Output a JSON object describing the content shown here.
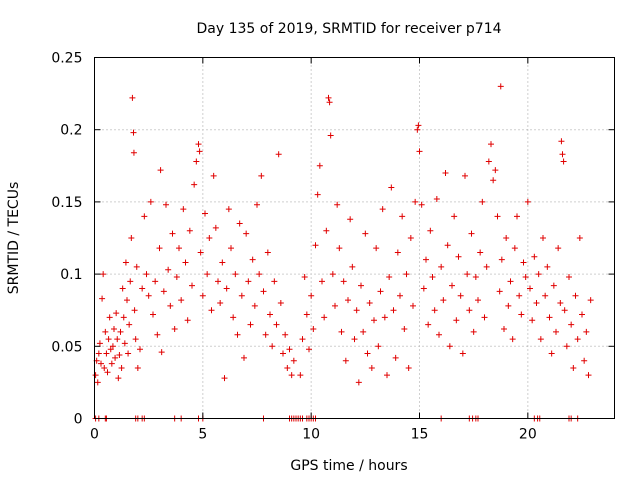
{
  "chart_data": {
    "type": "scatter",
    "title": "Day 135 of 2019, SRMTID for receiver p714",
    "xlabel": "GPS time / hours",
    "ylabel": "SRMTID / TECUs",
    "xlim": [
      0,
      24
    ],
    "ylim": [
      0,
      0.25
    ],
    "xticks": [
      0,
      5,
      10,
      15,
      20
    ],
    "xtick_labels": [
      "0",
      "5",
      "10",
      "15",
      "20"
    ],
    "yticks": [
      0,
      0.05,
      0.1,
      0.15,
      0.2,
      0.25
    ],
    "ytick_labels": [
      "0",
      "0.05",
      "0.1",
      "0.15",
      "0.2",
      "0.25"
    ],
    "grid": true,
    "marker": "+",
    "series_color": "#e00000",
    "series": [
      {
        "name": "SRMTID",
        "points": [
          [
            0.05,
            0.03
          ],
          [
            0.1,
            0.04
          ],
          [
            0.15,
            0.025
          ],
          [
            0.2,
            0.045
          ],
          [
            0.25,
            0.052
          ],
          [
            0.3,
            0.038
          ],
          [
            0.35,
            0.083
          ],
          [
            0.4,
            0.1
          ],
          [
            0.45,
            0.035
          ],
          [
            0.5,
            0.06
          ],
          [
            0.55,
            0.045
          ],
          [
            0.6,
            0.032
          ],
          [
            0.65,
            0.055
          ],
          [
            0.7,
            0.07
          ],
          [
            0.75,
            0.048
          ],
          [
            0.8,
            0.038
          ],
          [
            0.85,
            0.05
          ],
          [
            0.9,
            0.062
          ],
          [
            0.95,
            0.042
          ],
          [
            1.0,
            0.073
          ],
          [
            1.05,
            0.055
          ],
          [
            1.1,
            0.028
          ],
          [
            1.15,
            0.044
          ],
          [
            1.2,
            0.06
          ],
          [
            1.25,
            0.035
          ],
          [
            1.3,
            0.09
          ],
          [
            1.35,
            0.07
          ],
          [
            1.4,
            0.052
          ],
          [
            1.45,
            0.108
          ],
          [
            1.5,
            0.082
          ],
          [
            1.55,
            0.045
          ],
          [
            1.6,
            0.065
          ],
          [
            1.65,
            0.095
          ],
          [
            1.7,
            0.125
          ],
          [
            1.75,
            0.222
          ],
          [
            1.8,
            0.198
          ],
          [
            1.82,
            0.184
          ],
          [
            1.85,
            0.075
          ],
          [
            1.9,
            0.055
          ],
          [
            1.95,
            0.105
          ],
          [
            2.0,
            0.035
          ],
          [
            2.1,
            0.048
          ],
          [
            2.2,
            0.09
          ],
          [
            2.3,
            0.14
          ],
          [
            2.4,
            0.1
          ],
          [
            2.5,
            0.085
          ],
          [
            2.6,
            0.15
          ],
          [
            2.7,
            0.072
          ],
          [
            2.8,
            0.095
          ],
          [
            2.9,
            0.058
          ],
          [
            3.0,
            0.118
          ],
          [
            3.05,
            0.172
          ],
          [
            3.1,
            0.046
          ],
          [
            3.2,
            0.088
          ],
          [
            3.3,
            0.148
          ],
          [
            3.4,
            0.103
          ],
          [
            3.5,
            0.078
          ],
          [
            3.6,
            0.128
          ],
          [
            3.7,
            0.062
          ],
          [
            3.8,
            0.098
          ],
          [
            3.9,
            0.118
          ],
          [
            4.0,
            0.082
          ],
          [
            4.1,
            0.145
          ],
          [
            4.2,
            0.108
          ],
          [
            4.3,
            0.068
          ],
          [
            4.4,
            0.13
          ],
          [
            4.5,
            0.092
          ],
          [
            4.6,
            0.162
          ],
          [
            4.7,
            0.178
          ],
          [
            4.8,
            0.19
          ],
          [
            4.85,
            0.185
          ],
          [
            4.9,
            0.115
          ],
          [
            5.0,
            0.085
          ],
          [
            5.1,
            0.142
          ],
          [
            5.2,
            0.1
          ],
          [
            5.3,
            0.125
          ],
          [
            5.4,
            0.075
          ],
          [
            5.5,
            0.168
          ],
          [
            5.6,
            0.132
          ],
          [
            5.7,
            0.095
          ],
          [
            5.8,
            0.08
          ],
          [
            5.9,
            0.108
          ],
          [
            6.0,
            0.028
          ],
          [
            6.1,
            0.09
          ],
          [
            6.2,
            0.145
          ],
          [
            6.3,
            0.118
          ],
          [
            6.4,
            0.07
          ],
          [
            6.5,
            0.1
          ],
          [
            6.6,
            0.058
          ],
          [
            6.7,
            0.135
          ],
          [
            6.8,
            0.085
          ],
          [
            6.9,
            0.042
          ],
          [
            7.0,
            0.128
          ],
          [
            7.1,
            0.095
          ],
          [
            7.2,
            0.065
          ],
          [
            7.3,
            0.11
          ],
          [
            7.4,
            0.078
          ],
          [
            7.5,
            0.148
          ],
          [
            7.6,
            0.1
          ],
          [
            7.7,
            0.168
          ],
          [
            7.8,
            0.088
          ],
          [
            7.9,
            0.058
          ],
          [
            8.0,
            0.115
          ],
          [
            8.1,
            0.072
          ],
          [
            8.2,
            0.05
          ],
          [
            8.3,
            0.095
          ],
          [
            8.4,
            0.065
          ],
          [
            8.5,
            0.183
          ],
          [
            8.6,
            0.08
          ],
          [
            8.7,
            0.045
          ],
          [
            8.8,
            0.058
          ],
          [
            8.9,
            0.035
          ],
          [
            9.0,
            0.048
          ],
          [
            9.1,
            0.03
          ],
          [
            9.2,
            0.04
          ],
          [
            9.5,
            0.03
          ],
          [
            9.6,
            0.055
          ],
          [
            9.7,
            0.098
          ],
          [
            9.8,
            0.072
          ],
          [
            9.9,
            0.048
          ],
          [
            10.0,
            0.085
          ],
          [
            10.1,
            0.062
          ],
          [
            10.2,
            0.12
          ],
          [
            10.3,
            0.155
          ],
          [
            10.4,
            0.175
          ],
          [
            10.5,
            0.095
          ],
          [
            10.6,
            0.07
          ],
          [
            10.7,
            0.13
          ],
          [
            10.8,
            0.222
          ],
          [
            10.85,
            0.219
          ],
          [
            10.9,
            0.196
          ],
          [
            11.0,
            0.1
          ],
          [
            11.1,
            0.078
          ],
          [
            11.2,
            0.148
          ],
          [
            11.3,
            0.118
          ],
          [
            11.4,
            0.06
          ],
          [
            11.5,
            0.095
          ],
          [
            11.6,
            0.04
          ],
          [
            11.7,
            0.082
          ],
          [
            11.8,
            0.138
          ],
          [
            11.9,
            0.105
          ],
          [
            12.0,
            0.055
          ],
          [
            12.1,
            0.075
          ],
          [
            12.2,
            0.025
          ],
          [
            12.3,
            0.092
          ],
          [
            12.4,
            0.06
          ],
          [
            12.5,
            0.128
          ],
          [
            12.6,
            0.045
          ],
          [
            12.7,
            0.08
          ],
          [
            12.8,
            0.035
          ],
          [
            12.9,
            0.068
          ],
          [
            13.0,
            0.118
          ],
          [
            13.1,
            0.05
          ],
          [
            13.2,
            0.088
          ],
          [
            13.3,
            0.145
          ],
          [
            13.4,
            0.07
          ],
          [
            13.5,
            0.03
          ],
          [
            13.6,
            0.098
          ],
          [
            13.7,
            0.16
          ],
          [
            13.8,
            0.075
          ],
          [
            13.9,
            0.042
          ],
          [
            14.0,
            0.115
          ],
          [
            14.1,
            0.085
          ],
          [
            14.2,
            0.14
          ],
          [
            14.3,
            0.062
          ],
          [
            14.4,
            0.1
          ],
          [
            14.5,
            0.035
          ],
          [
            14.6,
            0.125
          ],
          [
            14.7,
            0.078
          ],
          [
            14.8,
            0.15
          ],
          [
            14.9,
            0.2
          ],
          [
            14.95,
            0.203
          ],
          [
            15.0,
            0.185
          ],
          [
            15.1,
            0.148
          ],
          [
            15.2,
            0.09
          ],
          [
            15.3,
            0.11
          ],
          [
            15.4,
            0.065
          ],
          [
            15.5,
            0.13
          ],
          [
            15.6,
            0.098
          ],
          [
            15.7,
            0.075
          ],
          [
            15.8,
            0.152
          ],
          [
            15.9,
            0.058
          ],
          [
            16.0,
            0.105
          ],
          [
            16.1,
            0.082
          ],
          [
            16.2,
            0.17
          ],
          [
            16.3,
            0.12
          ],
          [
            16.4,
            0.05
          ],
          [
            16.5,
            0.092
          ],
          [
            16.6,
            0.14
          ],
          [
            16.7,
            0.068
          ],
          [
            16.8,
            0.112
          ],
          [
            16.9,
            0.085
          ],
          [
            17.0,
            0.045
          ],
          [
            17.1,
            0.168
          ],
          [
            17.2,
            0.1
          ],
          [
            17.3,
            0.075
          ],
          [
            17.4,
            0.128
          ],
          [
            17.5,
            0.06
          ],
          [
            17.6,
            0.098
          ],
          [
            17.7,
            0.082
          ],
          [
            17.8,
            0.115
          ],
          [
            17.9,
            0.15
          ],
          [
            18.0,
            0.07
          ],
          [
            18.1,
            0.105
          ],
          [
            18.2,
            0.178
          ],
          [
            18.3,
            0.19
          ],
          [
            18.4,
            0.165
          ],
          [
            18.5,
            0.172
          ],
          [
            18.6,
            0.14
          ],
          [
            18.7,
            0.088
          ],
          [
            18.75,
            0.23
          ],
          [
            18.8,
            0.11
          ],
          [
            18.9,
            0.062
          ],
          [
            19.0,
            0.125
          ],
          [
            19.1,
            0.078
          ],
          [
            19.2,
            0.095
          ],
          [
            19.3,
            0.055
          ],
          [
            19.4,
            0.118
          ],
          [
            19.5,
            0.14
          ],
          [
            19.6,
            0.085
          ],
          [
            19.7,
            0.072
          ],
          [
            19.8,
            0.108
          ],
          [
            19.9,
            0.098
          ],
          [
            20.0,
            0.15
          ],
          [
            20.1,
            0.09
          ],
          [
            20.2,
            0.068
          ],
          [
            20.3,
            0.112
          ],
          [
            20.4,
            0.08
          ],
          [
            20.5,
            0.1
          ],
          [
            20.6,
            0.055
          ],
          [
            20.7,
            0.125
          ],
          [
            20.8,
            0.085
          ],
          [
            20.9,
            0.105
          ],
          [
            21.0,
            0.07
          ],
          [
            21.1,
            0.045
          ],
          [
            21.2,
            0.092
          ],
          [
            21.3,
            0.06
          ],
          [
            21.4,
            0.118
          ],
          [
            21.5,
            0.08
          ],
          [
            21.55,
            0.192
          ],
          [
            21.6,
            0.183
          ],
          [
            21.65,
            0.178
          ],
          [
            21.7,
            0.075
          ],
          [
            21.8,
            0.05
          ],
          [
            21.9,
            0.098
          ],
          [
            22.0,
            0.065
          ],
          [
            22.1,
            0.035
          ],
          [
            22.2,
            0.085
          ],
          [
            22.3,
            0.055
          ],
          [
            22.4,
            0.125
          ],
          [
            22.5,
            0.072
          ],
          [
            22.6,
            0.04
          ],
          [
            22.7,
            0.06
          ],
          [
            22.8,
            0.03
          ],
          [
            22.9,
            0.082
          ]
        ]
      }
    ],
    "zero_points_x": [
      0.05,
      0.2,
      0.5,
      0.55,
      1.9,
      2.0,
      2.2,
      2.3,
      3.7,
      4.0,
      4.8,
      5.0,
      7.8,
      9.0,
      9.1,
      9.2,
      9.3,
      9.4,
      9.5,
      9.6,
      9.8,
      9.9,
      10.0,
      10.1,
      10.2,
      16.0,
      17.3,
      17.45,
      17.6,
      17.7,
      20.3,
      20.45,
      20.55,
      21.9,
      22.0,
      22.3
    ]
  }
}
